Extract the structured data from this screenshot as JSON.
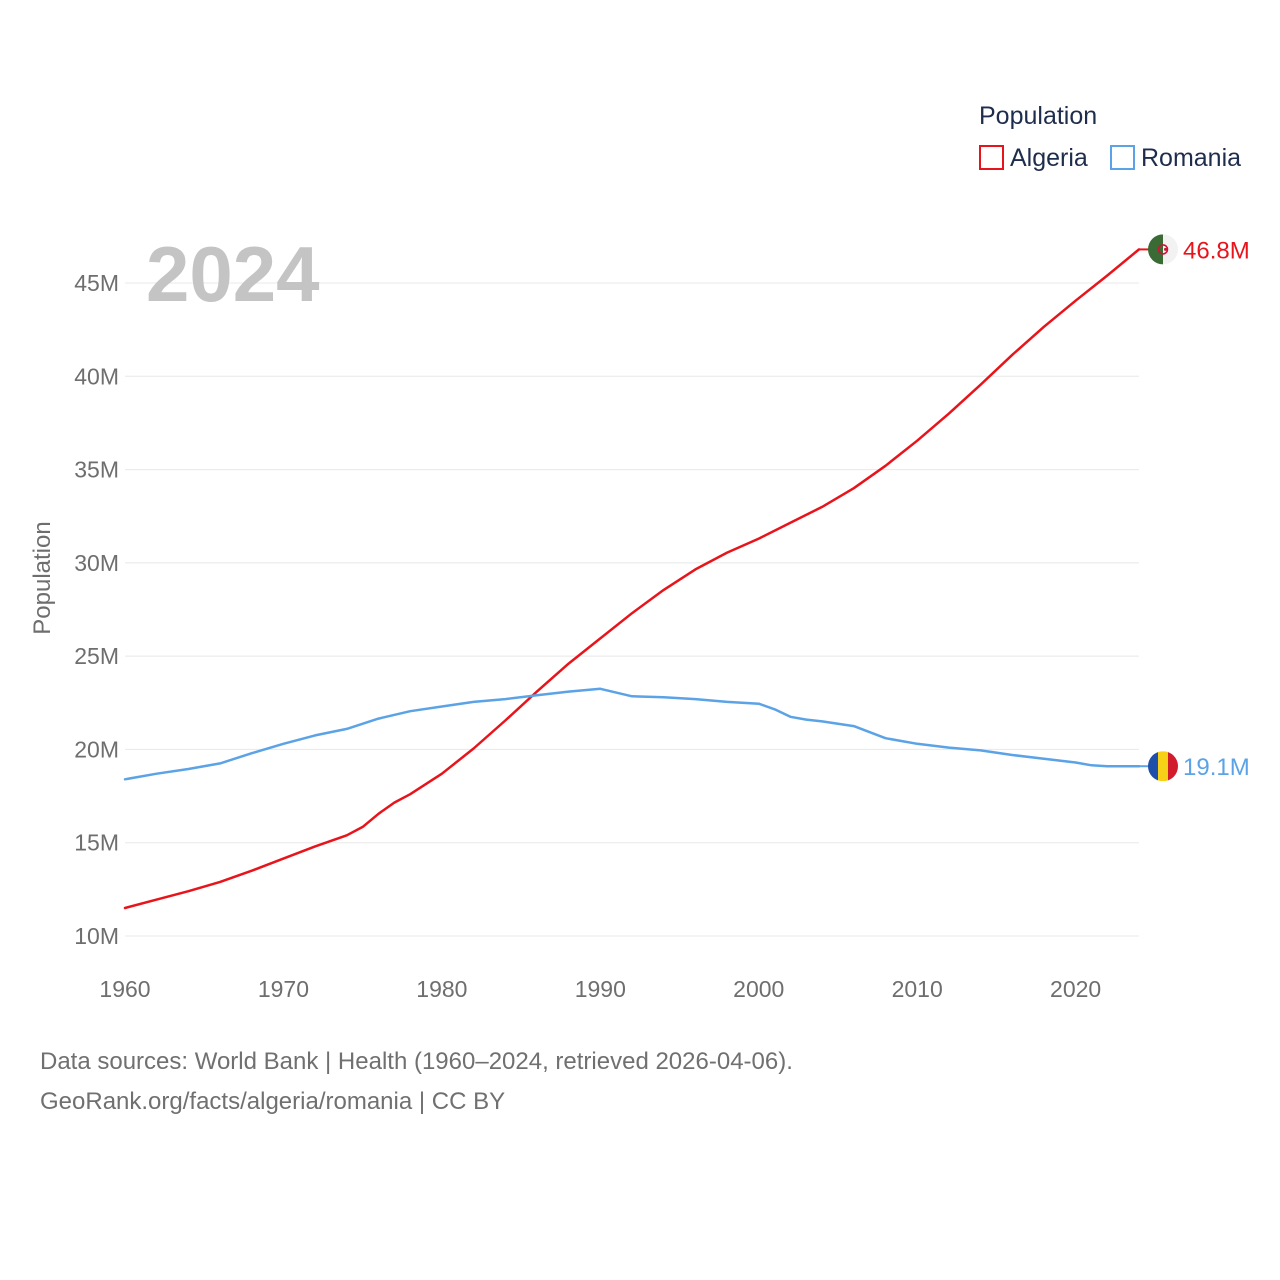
{
  "chart_data": {
    "type": "line",
    "title": "",
    "year_label": "2024",
    "xlabel": "",
    "ylabel": "Population",
    "legend_title": "Population",
    "xlim": [
      1960,
      2024
    ],
    "ylim": [
      9000000,
      48500000
    ],
    "x_ticks": [
      1960,
      1970,
      1980,
      1990,
      2000,
      2010,
      2020
    ],
    "y_ticks": [
      {
        "value": 10000000,
        "label": "10M"
      },
      {
        "value": 15000000,
        "label": "15M"
      },
      {
        "value": 20000000,
        "label": "20M"
      },
      {
        "value": 25000000,
        "label": "25M"
      },
      {
        "value": 30000000,
        "label": "30M"
      },
      {
        "value": 35000000,
        "label": "35M"
      },
      {
        "value": 40000000,
        "label": "40M"
      },
      {
        "value": 45000000,
        "label": "45M"
      }
    ],
    "series": [
      {
        "name": "Algeria",
        "color": "#e8141b",
        "end_label": "46.8M",
        "flag": "algeria",
        "x": [
          1960,
          1962,
          1964,
          1966,
          1968,
          1970,
          1972,
          1974,
          1975,
          1976,
          1977,
          1978,
          1980,
          1982,
          1984,
          1986,
          1988,
          1990,
          1992,
          1994,
          1996,
          1998,
          2000,
          2002,
          2004,
          2006,
          2008,
          2010,
          2012,
          2014,
          2016,
          2018,
          2020,
          2022,
          2024
        ],
        "values": [
          11500000,
          11950000,
          12400000,
          12900000,
          13500000,
          14150000,
          14800000,
          15400000,
          15850000,
          16550000,
          17150000,
          17600000,
          18700000,
          20050000,
          21550000,
          23100000,
          24600000,
          25950000,
          27300000,
          28550000,
          29650000,
          30550000,
          31300000,
          32150000,
          33000000,
          34000000,
          35200000,
          36550000,
          38000000,
          39550000,
          41150000,
          42650000,
          44050000,
          45400000,
          46800000
        ]
      },
      {
        "name": "Romania",
        "color": "#5ba3e6",
        "end_label": "19.1M",
        "flag": "romania",
        "x": [
          1960,
          1962,
          1964,
          1966,
          1968,
          1970,
          1972,
          1974,
          1976,
          1978,
          1980,
          1982,
          1984,
          1986,
          1988,
          1990,
          1992,
          1994,
          1996,
          1998,
          2000,
          2001,
          2002,
          2003,
          2004,
          2006,
          2008,
          2009,
          2010,
          2012,
          2014,
          2016,
          2018,
          2020,
          2021,
          2022,
          2024
        ],
        "values": [
          18400000,
          18700000,
          18950000,
          19250000,
          19800000,
          20300000,
          20750000,
          21100000,
          21650000,
          22050000,
          22300000,
          22550000,
          22700000,
          22900000,
          23100000,
          23250000,
          22850000,
          22800000,
          22700000,
          22550000,
          22450000,
          22150000,
          21750000,
          21600000,
          21500000,
          21250000,
          20600000,
          20450000,
          20300000,
          20100000,
          19950000,
          19700000,
          19500000,
          19300000,
          19150000,
          19100000,
          19100000
        ]
      }
    ]
  },
  "footer": {
    "line1": "Data sources: World Bank | Health (1960–2024, retrieved 2026-04-06).",
    "line2": "GeoRank.org/facts/algeria/romania | CC BY"
  }
}
